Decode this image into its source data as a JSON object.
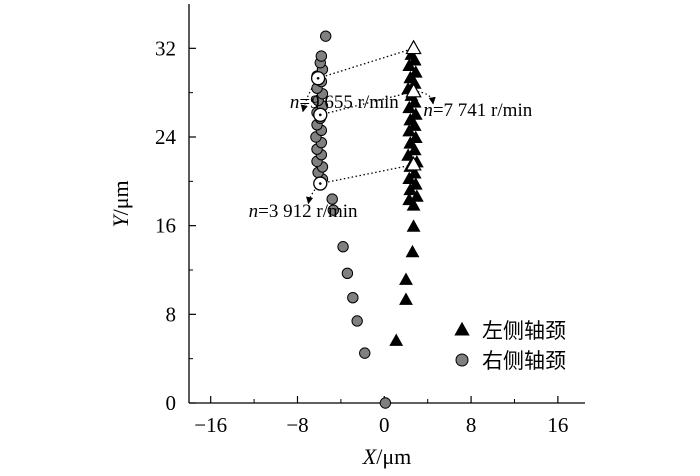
{
  "chart_data": {
    "type": "scatter",
    "title": "",
    "xlabel": {
      "var": "X",
      "unit": "/μm"
    },
    "ylabel": {
      "var": "Y",
      "unit": "/μm"
    },
    "xlim": [
      -18,
      18.5
    ],
    "ylim": [
      0,
      36
    ],
    "xticks": [
      -16,
      -8,
      0,
      8,
      16
    ],
    "yticks": [
      0,
      8,
      16,
      24,
      32
    ],
    "xtick_labels": [
      "−16",
      "−8",
      "0",
      "8",
      "16"
    ],
    "ytick_labels": [
      "0",
      "8",
      "16",
      "24",
      "32"
    ],
    "grid": false,
    "legend_position": "bottom-right",
    "series": [
      {
        "name": "左侧轴颈",
        "marker": "triangle",
        "color": "#000000",
        "points": [
          [
            1.1,
            5.6
          ],
          [
            2.0,
            9.3
          ],
          [
            2.0,
            11.1
          ],
          [
            2.6,
            13.6
          ],
          [
            2.7,
            15.9
          ],
          [
            2.7,
            17.8
          ],
          [
            2.3,
            18.3
          ],
          [
            3.0,
            18.6
          ],
          [
            2.4,
            19.2
          ],
          [
            2.9,
            19.7
          ],
          [
            2.3,
            20.2
          ],
          [
            2.8,
            20.7
          ],
          [
            2.4,
            21.3
          ],
          [
            3.0,
            21.7
          ],
          [
            2.2,
            22.3
          ],
          [
            2.8,
            22.8
          ],
          [
            2.4,
            23.4
          ],
          [
            2.9,
            23.9
          ],
          [
            2.3,
            24.5
          ],
          [
            2.8,
            25.0
          ],
          [
            2.4,
            25.5
          ],
          [
            2.9,
            26.0
          ],
          [
            2.3,
            26.6
          ],
          [
            2.8,
            27.1
          ],
          [
            2.5,
            27.7
          ],
          [
            2.2,
            28.3
          ],
          [
            2.8,
            28.8
          ],
          [
            2.4,
            29.3
          ],
          [
            2.9,
            29.8
          ],
          [
            2.3,
            30.4
          ],
          [
            2.8,
            30.9
          ],
          [
            2.5,
            31.4
          ]
        ],
        "highlighted": [
          [
            2.7,
            21.5
          ],
          [
            2.7,
            28.1
          ],
          [
            2.7,
            32.0
          ]
        ]
      },
      {
        "name": "右侧轴颈",
        "marker": "circle",
        "color": "#808080",
        "points": [
          [
            0.1,
            0.0
          ],
          [
            -1.8,
            4.5
          ],
          [
            -2.5,
            7.4
          ],
          [
            -2.9,
            9.5
          ],
          [
            -3.4,
            11.7
          ],
          [
            -3.8,
            14.1
          ],
          [
            -4.7,
            17.4
          ],
          [
            -4.8,
            18.4
          ],
          [
            -5.7,
            20.2
          ],
          [
            -6.1,
            20.8
          ],
          [
            -5.7,
            21.3
          ],
          [
            -6.2,
            21.8
          ],
          [
            -5.8,
            22.4
          ],
          [
            -6.2,
            22.9
          ],
          [
            -5.8,
            23.5
          ],
          [
            -6.3,
            24.0
          ],
          [
            -5.8,
            24.6
          ],
          [
            -6.2,
            25.1
          ],
          [
            -5.9,
            25.7
          ],
          [
            -6.2,
            26.2
          ],
          [
            -5.7,
            26.8
          ],
          [
            -6.1,
            27.3
          ],
          [
            -5.7,
            27.9
          ],
          [
            -6.2,
            28.4
          ],
          [
            -5.8,
            29.0
          ],
          [
            -6.2,
            29.5
          ],
          [
            -5.7,
            30.1
          ],
          [
            -5.9,
            30.7
          ],
          [
            -5.8,
            31.3
          ],
          [
            -5.4,
            33.1
          ]
        ],
        "highlighted": [
          [
            -5.9,
            19.8
          ],
          [
            -5.9,
            26.0
          ],
          [
            -6.1,
            29.3
          ]
        ]
      }
    ],
    "annotations": [
      {
        "label": "n=9 655 r/min",
        "n": "n",
        "rest": "=9 655 r/min",
        "from": [
          -6.1,
          29.3
        ],
        "to": [
          2.7,
          32.0
        ],
        "arrow_to": [
          -7.5,
          26.3
        ],
        "text_at": [
          -8.7,
          26.6
        ]
      },
      {
        "label": "n=7 741 r/min",
        "n": "n",
        "rest": "=7 741 r/min",
        "from": [
          -5.9,
          26.0
        ],
        "to": [
          2.7,
          28.1
        ],
        "arrow_to": [
          4.5,
          27.0
        ],
        "text_at": [
          3.6,
          25.9
        ]
      },
      {
        "label": "n=3 912 r/min",
        "n": "n",
        "rest": "=3 912 r/min",
        "from": [
          -5.9,
          19.8
        ],
        "to": [
          2.7,
          21.5
        ],
        "arrow_to": [
          -7.0,
          18.0
        ],
        "text_at": [
          -12.5,
          16.8
        ]
      }
    ]
  }
}
